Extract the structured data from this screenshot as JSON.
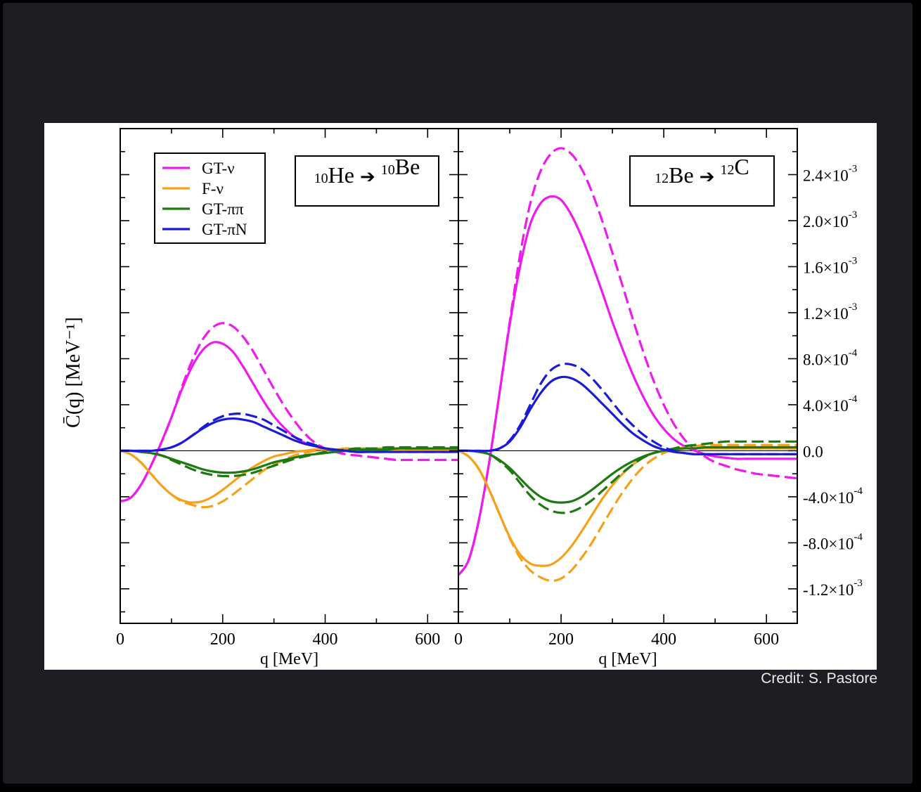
{
  "credit": "Credit: S. Pastore",
  "colors": {
    "GT-nu": "#ee1aee",
    "F-nu": "#f5a21a",
    "GT-pipi": "#1c7a10",
    "GT-piN": "#1b1bd6",
    "axis": "#000000",
    "figure_background": "#ffffff",
    "page_background": "#1c1e24",
    "credit_text": "#ececec"
  },
  "chart_data": {
    "type": "line",
    "ylabel": "C̄(q) [MeV⁻¹]",
    "xlabel": "q [MeV]",
    "line_styles": {
      "solid": "solid line",
      "dashed": "dashed line"
    },
    "legend": {
      "placement": "top-left of left panel",
      "entries": [
        {
          "key": "GT-nu",
          "label": "GT-ν"
        },
        {
          "key": "F-nu",
          "label": "F-ν"
        },
        {
          "key": "GT-pipi",
          "label": "GT-ππ"
        },
        {
          "key": "GT-piN",
          "label": "GT-πN"
        }
      ]
    },
    "xlim": [
      0,
      660
    ],
    "ylim": [
      -0.0015,
      0.0028
    ],
    "x_ticks": [
      0,
      200,
      400,
      600
    ],
    "x_tick_labels": [
      "0",
      "200",
      "400",
      "600"
    ],
    "y_ticks": [
      -0.0012,
      -0.0008,
      -0.0004,
      0,
      0.0004,
      0.0008,
      0.0012,
      0.0016,
      0.002,
      0.0024
    ],
    "y_tick_labels": [
      {
        "mant": "-1.2×10",
        "exp": "-3"
      },
      {
        "mant": "-8.0×10",
        "exp": "-4"
      },
      {
        "mant": "-4.0×10",
        "exp": "-4"
      },
      {
        "mant": "0.0",
        "exp": ""
      },
      {
        "mant": "4.0×10",
        "exp": "-4"
      },
      {
        "mant": "8.0×10",
        "exp": "-4"
      },
      {
        "mant": "1.2×10",
        "exp": "-3"
      },
      {
        "mant": "1.6×10",
        "exp": "-3"
      },
      {
        "mant": "2.0×10",
        "exp": "-3"
      },
      {
        "mant": "2.4×10",
        "exp": "-3"
      }
    ],
    "grid": false,
    "panels": [
      {
        "id": "left",
        "title": {
          "a_mass": "10",
          "a_sym": "He",
          "b_mass": "10",
          "b_sym": "Be"
        },
        "x": [
          0,
          20,
          40,
          60,
          80,
          100,
          120,
          140,
          160,
          180,
          200,
          220,
          240,
          260,
          280,
          300,
          320,
          340,
          360,
          380,
          400,
          420,
          440,
          460,
          480,
          500,
          520,
          540,
          560,
          580,
          600,
          620,
          640,
          660
        ],
        "series": [
          {
            "key": "GT-nu",
            "style": "solid",
            "values": [
              -0.00044,
              -0.00041,
              -0.0003,
              -0.00013,
              7e-05,
              0.00029,
              0.00053,
              0.00073,
              0.00087,
              0.00094,
              0.00093,
              0.00086,
              0.00073,
              0.00058,
              0.00043,
              0.0003,
              0.0002,
              0.00012,
              7e-05,
              4e-05,
              2e-05,
              1e-05,
              0.0,
              0.0,
              0.0,
              0.0,
              0.0,
              0.0,
              0.0,
              0.0,
              0.0,
              0.0,
              0.0,
              0.0
            ]
          },
          {
            "key": "GT-nu",
            "style": "dashed",
            "values": [
              -0.00044,
              -0.00041,
              -0.0003,
              -0.00013,
              7e-05,
              0.00029,
              0.00055,
              0.00078,
              0.00096,
              0.00107,
              0.00111,
              0.00108,
              0.00099,
              0.00086,
              0.0007,
              0.00054,
              0.00039,
              0.00026,
              0.00015,
              7e-05,
              2e-05,
              -1e-05,
              -3e-05,
              -4e-05,
              -5e-05,
              -6e-05,
              -7e-05,
              -8e-05,
              -8e-05,
              -8e-05,
              -8e-05,
              -8e-05,
              -8e-05,
              -8e-05
            ]
          },
          {
            "key": "F-nu",
            "style": "solid",
            "values": [
              0.0,
              -3e-05,
              -0.0001,
              -0.0002,
              -0.0003,
              -0.00038,
              -0.00043,
              -0.00045,
              -0.00044,
              -0.0004,
              -0.00034,
              -0.00027,
              -0.0002,
              -0.00014,
              -9e-05,
              -5e-05,
              -3e-05,
              -1e-05,
              0.0,
              1e-05,
              1e-05,
              1e-05,
              1e-05,
              1e-05,
              0.0,
              0.0,
              0.0,
              0.0,
              0.0,
              0.0,
              0.0,
              0.0,
              0.0,
              0.0
            ]
          },
          {
            "key": "F-nu",
            "style": "dashed",
            "values": [
              0.0,
              -3e-05,
              -0.0001,
              -0.0002,
              -0.0003,
              -0.00038,
              -0.00044,
              -0.00047,
              -0.00049,
              -0.00048,
              -0.00044,
              -0.00038,
              -0.00031,
              -0.00024,
              -0.00017,
              -0.00012,
              -8e-05,
              -4e-05,
              -2e-05,
              0.0,
              1e-05,
              1e-05,
              2e-05,
              2e-05,
              2e-05,
              2e-05,
              2e-05,
              2e-05,
              2e-05,
              2e-05,
              2e-05,
              2e-05,
              2e-05,
              2e-05
            ]
          },
          {
            "key": "GT-pipi",
            "style": "solid",
            "values": [
              0.0,
              0.0,
              -1e-05,
              -2e-05,
              -4e-05,
              -7e-05,
              -0.0001,
              -0.00013,
              -0.00016,
              -0.00018,
              -0.00019,
              -0.00019,
              -0.00018,
              -0.00016,
              -0.00013,
              -0.0001,
              -8e-05,
              -6e-05,
              -4e-05,
              -3e-05,
              -2e-05,
              -1e-05,
              0.0,
              1e-05,
              1e-05,
              1e-05,
              1e-05,
              2e-05,
              2e-05,
              2e-05,
              2e-05,
              2e-05,
              2e-05,
              2e-05
            ]
          },
          {
            "key": "GT-pipi",
            "style": "dashed",
            "values": [
              0.0,
              0.0,
              -1e-05,
              -2e-05,
              -4e-05,
              -8e-05,
              -0.00012,
              -0.00016,
              -0.00019,
              -0.00021,
              -0.00022,
              -0.00022,
              -0.00021,
              -0.00019,
              -0.00016,
              -0.00013,
              -0.0001,
              -7e-05,
              -5e-05,
              -3e-05,
              -1e-05,
              0.0,
              1e-05,
              2e-05,
              2e-05,
              2e-05,
              3e-05,
              3e-05,
              3e-05,
              3e-05,
              3e-05,
              3e-05,
              3e-05,
              3e-05
            ]
          },
          {
            "key": "GT-piN",
            "style": "solid",
            "values": [
              0.0,
              0.0,
              0.0,
              0.0,
              1e-05,
              3e-05,
              7e-05,
              0.00013,
              0.00019,
              0.00024,
              0.00027,
              0.00028,
              0.00027,
              0.00025,
              0.00021,
              0.00017,
              0.00013,
              9e-05,
              6e-05,
              4e-05,
              2e-05,
              1e-05,
              0.0,
              -1e-05,
              -1e-05,
              -1e-05,
              -1e-05,
              -1e-05,
              -1e-05,
              -1e-05,
              -1e-05,
              -1e-05,
              -1e-05,
              -1e-05
            ]
          },
          {
            "key": "GT-piN",
            "style": "dashed",
            "values": [
              0.0,
              0.0,
              0.0,
              0.0,
              1e-05,
              3e-05,
              7e-05,
              0.00013,
              0.0002,
              0.00026,
              0.0003,
              0.00032,
              0.00032,
              0.0003,
              0.00027,
              0.00022,
              0.00017,
              0.00012,
              8e-05,
              5e-05,
              2e-05,
              1e-05,
              0.0,
              -1e-05,
              -1e-05,
              -1e-05,
              -1e-05,
              -1e-05,
              -1e-05,
              -1e-05,
              -1e-05,
              -1e-05,
              -1e-05,
              -1e-05
            ]
          }
        ]
      },
      {
        "id": "right",
        "title": {
          "a_mass": "12",
          "a_sym": "Be",
          "b_mass": "12",
          "b_sym": "C"
        },
        "x": [
          0,
          20,
          40,
          60,
          80,
          100,
          120,
          140,
          160,
          180,
          200,
          220,
          240,
          260,
          280,
          300,
          320,
          340,
          360,
          380,
          400,
          420,
          440,
          460,
          480,
          500,
          520,
          540,
          560,
          580,
          600,
          620,
          640,
          660
        ],
        "series": [
          {
            "key": "GT-nu",
            "style": "solid",
            "values": [
              -0.00108,
              -0.00095,
              -0.0006,
              -0.0001,
              0.0005,
              0.0011,
              0.0016,
              0.00197,
              0.00215,
              0.00221,
              0.00218,
              0.00205,
              0.00186,
              0.00163,
              0.00138,
              0.00112,
              0.00088,
              0.00066,
              0.00047,
              0.00031,
              0.00019,
              0.0001,
              4e-05,
              0.0,
              -3e-05,
              -5e-05,
              -6e-05,
              -7e-05,
              -7e-05,
              -7e-05,
              -7e-05,
              -7e-05,
              -7e-05,
              -7e-05
            ]
          },
          {
            "key": "GT-nu",
            "style": "dashed",
            "values": [
              -0.00108,
              -0.00095,
              -0.0006,
              -0.0001,
              0.0005,
              0.00112,
              0.0017,
              0.00215,
              0.00243,
              0.00258,
              0.00263,
              0.00258,
              0.00245,
              0.00225,
              0.002,
              0.00172,
              0.00143,
              0.00114,
              0.00086,
              0.00061,
              0.0004,
              0.00023,
              0.0001,
              1e-05,
              -5e-05,
              -0.0001,
              -0.00013,
              -0.00016,
              -0.00018,
              -0.0002,
              -0.00021,
              -0.00022,
              -0.00023,
              -0.00024
            ]
          },
          {
            "key": "F-nu",
            "style": "solid",
            "values": [
              0.0,
              -5e-05,
              -0.00016,
              -0.00034,
              -0.00055,
              -0.00075,
              -0.0009,
              -0.00098,
              -0.001,
              -0.00099,
              -0.00093,
              -0.00083,
              -0.0007,
              -0.00056,
              -0.00042,
              -0.0003,
              -0.0002,
              -0.00012,
              -6e-05,
              -2e-05,
              0.0,
              1e-05,
              2e-05,
              2e-05,
              2e-05,
              2e-05,
              2e-05,
              2e-05,
              2e-05,
              2e-05,
              2e-05,
              2e-05,
              2e-05,
              2e-05
            ]
          },
          {
            "key": "F-nu",
            "style": "dashed",
            "values": [
              0.0,
              -5e-05,
              -0.00016,
              -0.00034,
              -0.00055,
              -0.00076,
              -0.00093,
              -0.00104,
              -0.0011,
              -0.00113,
              -0.00111,
              -0.00104,
              -0.00093,
              -0.0008,
              -0.00065,
              -0.0005,
              -0.00036,
              -0.00024,
              -0.00014,
              -7e-05,
              -2e-05,
              1e-05,
              3e-05,
              4e-05,
              5e-05,
              5e-05,
              5e-05,
              5e-05,
              5e-05,
              5e-05,
              5e-05,
              5e-05,
              5e-05,
              5e-05
            ]
          },
          {
            "key": "GT-pipi",
            "style": "solid",
            "values": [
              0.0,
              0.0,
              -1e-05,
              -3e-05,
              -8e-05,
              -0.00015,
              -0.00024,
              -0.00033,
              -0.0004,
              -0.00044,
              -0.00045,
              -0.00044,
              -0.0004,
              -0.00034,
              -0.00027,
              -0.0002,
              -0.00014,
              -9e-05,
              -5e-05,
              -2e-05,
              0.0,
              1e-05,
              2e-05,
              2e-05,
              3e-05,
              3e-05,
              3e-05,
              3e-05,
              3e-05,
              3e-05,
              3e-05,
              3e-05,
              3e-05,
              3e-05
            ]
          },
          {
            "key": "GT-pipi",
            "style": "dashed",
            "values": [
              0.0,
              0.0,
              -1e-05,
              -3e-05,
              -9e-05,
              -0.00017,
              -0.00028,
              -0.00039,
              -0.00047,
              -0.00052,
              -0.00054,
              -0.00053,
              -0.00049,
              -0.00043,
              -0.00035,
              -0.00027,
              -0.00019,
              -0.00012,
              -6e-05,
              -2e-05,
              0.0,
              2e-05,
              4e-05,
              5e-05,
              6e-05,
              7e-05,
              8e-05,
              8e-05,
              8e-05,
              8e-05,
              8e-05,
              8e-05,
              8e-05,
              8e-05
            ]
          },
          {
            "key": "GT-piN",
            "style": "solid",
            "values": [
              0.0,
              0.0,
              0.0,
              0.0,
              2e-05,
              8e-05,
              0.0002,
              0.00036,
              0.0005,
              0.0006,
              0.00064,
              0.00063,
              0.00058,
              0.0005,
              0.00041,
              0.00032,
              0.00023,
              0.00015,
              9e-05,
              4e-05,
              1e-05,
              -1e-05,
              -2e-05,
              -3e-05,
              -3e-05,
              -3e-05,
              -3e-05,
              -3e-05,
              -3e-05,
              -3e-05,
              -3e-05,
              -3e-05,
              -3e-05,
              -3e-05
            ]
          },
          {
            "key": "GT-piN",
            "style": "dashed",
            "values": [
              0.0,
              0.0,
              0.0,
              0.0,
              2e-05,
              9e-05,
              0.00022,
              0.0004,
              0.00058,
              0.0007,
              0.00075,
              0.00075,
              0.00071,
              0.00063,
              0.00053,
              0.00042,
              0.00031,
              0.00022,
              0.00014,
              8e-05,
              3e-05,
              0.0,
              -2e-05,
              -3e-05,
              -3e-05,
              -3e-05,
              -3e-05,
              -3e-05,
              -3e-05,
              -3e-05,
              -3e-05,
              -3e-05,
              -3e-05,
              -3e-05
            ]
          }
        ]
      }
    ]
  }
}
